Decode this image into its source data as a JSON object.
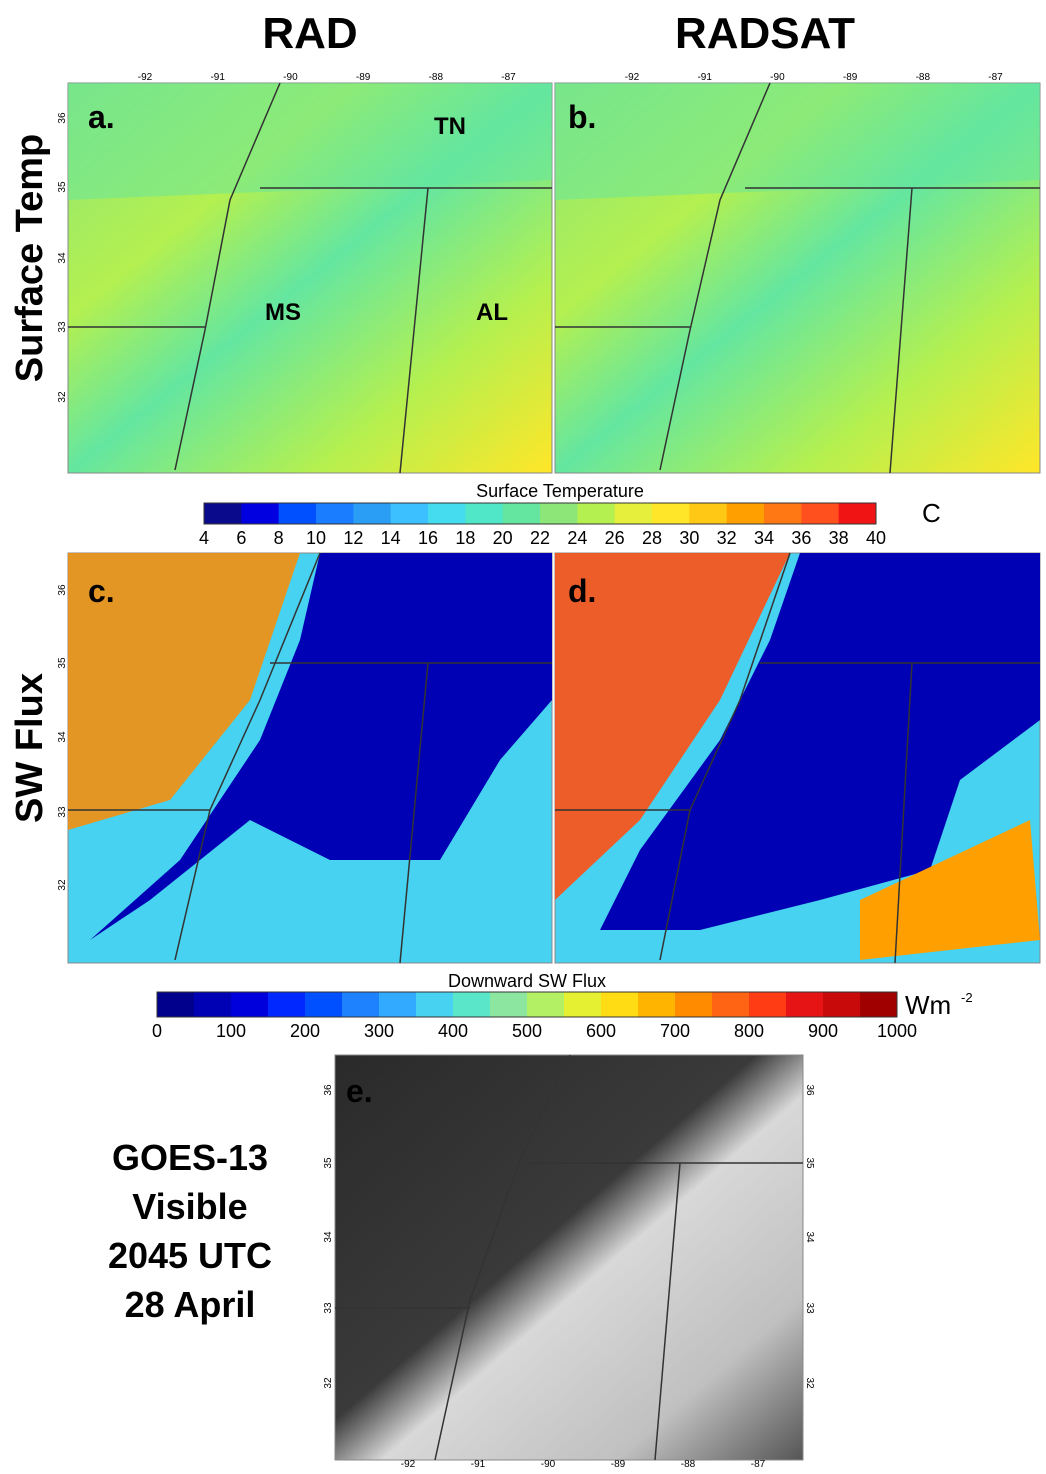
{
  "columns": [
    "RAD",
    "RADSAT"
  ],
  "rows": [
    "Surface Temp",
    "SW Flux"
  ],
  "panels": [
    "a.",
    "b.",
    "c.",
    "d.",
    "e."
  ],
  "state_labels": [
    "TN",
    "MS",
    "AL"
  ],
  "lon_ticks": [
    "-92",
    "-91",
    "-90",
    "-89",
    "-88",
    "-87"
  ],
  "lat_ticks": [
    "36",
    "35",
    "34",
    "33",
    "32"
  ],
  "colorbar_temp": {
    "title": "Surface Temperature",
    "unit": "C",
    "ticks": [
      "4",
      "6",
      "8",
      "10",
      "12",
      "14",
      "16",
      "18",
      "20",
      "22",
      "24",
      "26",
      "28",
      "30",
      "32",
      "34",
      "36",
      "38",
      "40"
    ],
    "colors": [
      "#0a0a8c",
      "#0000e0",
      "#0050ff",
      "#1a7dff",
      "#2a9df4",
      "#3cc0ff",
      "#46dcf0",
      "#50e6c8",
      "#64e6a0",
      "#8ce678",
      "#b4f050",
      "#e6f03c",
      "#ffe628",
      "#ffc814",
      "#ffa000",
      "#ff7814",
      "#ff501e",
      "#f01414"
    ]
  },
  "colorbar_sw": {
    "title": "Downward SW Flux",
    "unit": "Wm",
    "unit_exponent": "-2",
    "ticks": [
      "0",
      "100",
      "200",
      "300",
      "400",
      "500",
      "600",
      "700",
      "800",
      "900",
      "1000"
    ],
    "colors": [
      "#00008c",
      "#0000b4",
      "#0000dc",
      "#0028ff",
      "#0050ff",
      "#1e82ff",
      "#32aaff",
      "#46d2f0",
      "#5ae6c8",
      "#8ce6a0",
      "#b4f064",
      "#e6f032",
      "#ffdc14",
      "#ffb400",
      "#ff8c00",
      "#ff6414",
      "#ff3c14",
      "#e61414",
      "#c80a0a",
      "#a00000"
    ]
  },
  "goes_caption": [
    "GOES-13",
    "Visible",
    "2045 UTC",
    "28 April"
  ]
}
